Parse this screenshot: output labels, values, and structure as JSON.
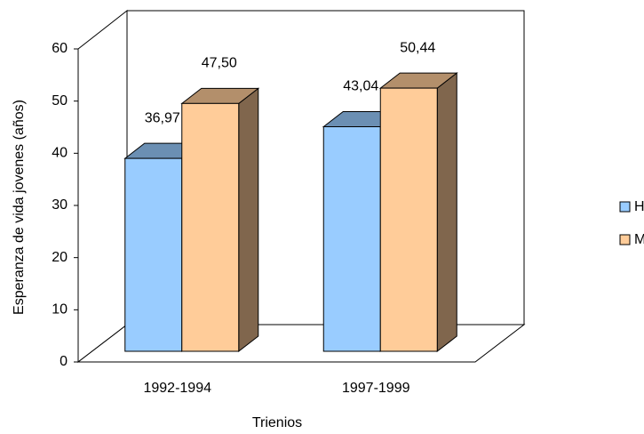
{
  "chart_data": {
    "type": "bar3d",
    "y_label": "Esperanza de vida jovenes (años)",
    "x_label": "Trienios",
    "categories": [
      "1992-1994",
      "1997-1999"
    ],
    "series": [
      {
        "name": "Hombres",
        "color": "#99ccff",
        "values": [
          36.97,
          43.04
        ],
        "value_labels": [
          "36,97",
          "43,04"
        ]
      },
      {
        "name": "Mujeres",
        "color": "#ffcc99",
        "values": [
          47.5,
          50.44
        ],
        "value_labels": [
          "47,50",
          "50,44"
        ]
      }
    ],
    "ylim": [
      0,
      60
    ],
    "yticks": [
      0,
      10,
      20,
      30,
      40,
      50,
      60
    ],
    "legend": "right"
  }
}
